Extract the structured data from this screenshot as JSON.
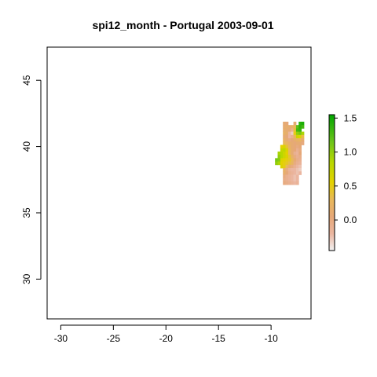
{
  "chart_data": {
    "type": "heatmap",
    "title": "spi12_month - Portugal 2003-09-01",
    "xlabel": "",
    "ylabel": "",
    "xlim": [
      -31.3,
      -6.2
    ],
    "ylim": [
      27.0,
      47.5
    ],
    "x_ticks": [
      -30,
      -25,
      -20,
      -15,
      -10
    ],
    "x_tick_labels": [
      "-30",
      "-25",
      "-20",
      "-15",
      "-10"
    ],
    "y_ticks": [
      30,
      35,
      40,
      45
    ],
    "y_tick_labels": [
      "30",
      "35",
      "40",
      "45"
    ],
    "grid": false,
    "legend": {
      "type": "colorbar",
      "placement": "right",
      "range": [
        -0.45,
        1.55
      ],
      "ticks": [
        0.0,
        0.5,
        1.0,
        1.5
      ],
      "tick_labels": [
        "0.0",
        "0.5",
        "1.0",
        "1.5"
      ],
      "colors": [
        [
          -0.45,
          "#f2f2f2"
        ],
        [
          -0.2,
          "#ebb6a0"
        ],
        [
          0.05,
          "#e6a878"
        ],
        [
          0.3,
          "#e8b85a"
        ],
        [
          0.55,
          "#e4d200"
        ],
        [
          0.85,
          "#b8d800"
        ],
        [
          1.15,
          "#6cc41a"
        ],
        [
          1.55,
          "#00a600"
        ]
      ]
    },
    "grid_cell_deg": 0.25,
    "cells": [
      [
        -8.75,
        41.75,
        0.1
      ],
      [
        -8.5,
        41.75,
        0.05
      ],
      [
        -7.75,
        41.75,
        0.1
      ],
      [
        -7.25,
        41.75,
        1.4
      ],
      [
        -7.0,
        41.75,
        1.45
      ],
      [
        -8.75,
        41.5,
        0.1
      ],
      [
        -8.5,
        41.5,
        0.15
      ],
      [
        -8.25,
        41.5,
        0.1
      ],
      [
        -8.0,
        41.5,
        0.2
      ],
      [
        -7.75,
        41.5,
        0.3
      ],
      [
        -7.5,
        41.5,
        1.2
      ],
      [
        -7.25,
        41.5,
        1.4
      ],
      [
        -7.0,
        41.5,
        1.3
      ],
      [
        -8.75,
        41.25,
        0.15
      ],
      [
        -8.5,
        41.25,
        0.1
      ],
      [
        -8.25,
        41.25,
        0.1
      ],
      [
        -8.0,
        41.25,
        -0.1
      ],
      [
        -7.75,
        41.25,
        0.4
      ],
      [
        -7.5,
        41.25,
        1.3
      ],
      [
        -7.25,
        41.25,
        1.35
      ],
      [
        -8.75,
        41.0,
        0.2
      ],
      [
        -8.5,
        41.0,
        0.15
      ],
      [
        -8.25,
        41.0,
        -0.2
      ],
      [
        -8.0,
        41.0,
        -0.3
      ],
      [
        -7.75,
        41.0,
        0.5
      ],
      [
        -7.5,
        41.0,
        1.0
      ],
      [
        -7.25,
        41.0,
        1.1
      ],
      [
        -7.0,
        41.0,
        0.9
      ],
      [
        -8.75,
        40.75,
        0.1
      ],
      [
        -8.5,
        40.75,
        0.05
      ],
      [
        -8.25,
        40.75,
        -0.2
      ],
      [
        -8.0,
        40.75,
        -0.1
      ],
      [
        -7.75,
        40.75,
        0.3
      ],
      [
        -7.5,
        40.75,
        0.7
      ],
      [
        -7.25,
        40.75,
        0.6
      ],
      [
        -7.0,
        40.75,
        0.35
      ],
      [
        -8.75,
        40.5,
        0.2
      ],
      [
        -8.5,
        40.5,
        0.1
      ],
      [
        -8.25,
        40.5,
        0.0
      ],
      [
        -8.0,
        40.5,
        0.05
      ],
      [
        -7.75,
        40.5,
        0.15
      ],
      [
        -7.5,
        40.5,
        0.2
      ],
      [
        -7.25,
        40.5,
        0.25
      ],
      [
        -7.0,
        40.5,
        0.1
      ],
      [
        -8.75,
        40.25,
        0.3
      ],
      [
        -8.5,
        40.25,
        0.25
      ],
      [
        -8.25,
        40.25,
        0.15
      ],
      [
        -8.0,
        40.25,
        0.1
      ],
      [
        -7.75,
        40.25,
        0.05
      ],
      [
        -7.5,
        40.25,
        0.1
      ],
      [
        -7.25,
        40.25,
        0.1
      ],
      [
        -7.0,
        40.25,
        0.0
      ],
      [
        -9.0,
        40.0,
        0.55
      ],
      [
        -8.75,
        40.0,
        0.6
      ],
      [
        -8.5,
        40.0,
        0.4
      ],
      [
        -8.25,
        40.0,
        0.2
      ],
      [
        -8.0,
        40.0,
        0.1
      ],
      [
        -7.75,
        40.0,
        0.05
      ],
      [
        -7.5,
        40.0,
        0.0
      ],
      [
        -7.25,
        40.0,
        0.05
      ],
      [
        -9.0,
        39.75,
        0.75
      ],
      [
        -8.75,
        39.75,
        0.8
      ],
      [
        -8.5,
        39.75,
        0.6
      ],
      [
        -8.25,
        39.75,
        0.3
      ],
      [
        -8.0,
        39.75,
        0.1
      ],
      [
        -7.75,
        39.75,
        0.05
      ],
      [
        -7.5,
        39.75,
        -0.1
      ],
      [
        -7.25,
        39.75,
        0.0
      ],
      [
        -9.25,
        39.5,
        0.9
      ],
      [
        -9.0,
        39.5,
        0.85
      ],
      [
        -8.75,
        39.5,
        0.7
      ],
      [
        -8.5,
        39.5,
        0.55
      ],
      [
        -8.25,
        39.5,
        0.3
      ],
      [
        -8.0,
        39.5,
        0.1
      ],
      [
        -7.75,
        39.5,
        -0.1
      ],
      [
        -7.5,
        39.5,
        -0.15
      ],
      [
        -7.25,
        39.5,
        0.05
      ],
      [
        -9.25,
        39.25,
        1.0
      ],
      [
        -9.0,
        39.25,
        0.85
      ],
      [
        -8.75,
        39.25,
        0.7
      ],
      [
        -8.5,
        39.25,
        0.6
      ],
      [
        -8.25,
        39.25,
        0.4
      ],
      [
        -8.0,
        39.25,
        0.2
      ],
      [
        -7.75,
        39.25,
        0.0
      ],
      [
        -7.5,
        39.25,
        -0.1
      ],
      [
        -7.25,
        39.25,
        -0.05
      ],
      [
        -9.5,
        39.0,
        1.1
      ],
      [
        -9.25,
        39.0,
        1.05
      ],
      [
        -9.0,
        39.0,
        0.6
      ],
      [
        -8.75,
        39.0,
        0.55
      ],
      [
        -8.5,
        39.0,
        0.5
      ],
      [
        -8.25,
        39.0,
        0.45
      ],
      [
        -8.0,
        39.0,
        0.3
      ],
      [
        -7.75,
        39.0,
        0.1
      ],
      [
        -7.5,
        39.0,
        -0.05
      ],
      [
        -7.25,
        39.0,
        -0.1
      ],
      [
        -9.5,
        38.75,
        1.0
      ],
      [
        -9.25,
        38.75,
        0.9
      ],
      [
        -9.0,
        38.75,
        0.55
      ],
      [
        -8.75,
        38.75,
        0.5
      ],
      [
        -8.5,
        38.75,
        0.45
      ],
      [
        -8.25,
        38.75,
        0.35
      ],
      [
        -8.0,
        38.75,
        0.25
      ],
      [
        -7.75,
        38.75,
        0.0
      ],
      [
        -7.5,
        38.75,
        -0.1
      ],
      [
        -7.25,
        38.75,
        -0.15
      ],
      [
        -9.0,
        38.5,
        0.6
      ],
      [
        -8.75,
        38.5,
        0.5
      ],
      [
        -8.5,
        38.5,
        0.3
      ],
      [
        -8.25,
        38.5,
        0.1
      ],
      [
        -8.0,
        38.5,
        0.0
      ],
      [
        -7.75,
        38.5,
        -0.1
      ],
      [
        -7.5,
        38.5,
        -0.2
      ],
      [
        -7.25,
        38.5,
        -0.25
      ],
      [
        -8.75,
        38.25,
        0.2
      ],
      [
        -8.5,
        38.25,
        0.0
      ],
      [
        -8.25,
        38.25,
        -0.15
      ],
      [
        -8.0,
        38.25,
        -0.2
      ],
      [
        -7.75,
        38.25,
        -0.2
      ],
      [
        -7.5,
        38.25,
        -0.25
      ],
      [
        -7.25,
        38.25,
        -0.3
      ],
      [
        -8.75,
        38.0,
        0.15
      ],
      [
        -8.5,
        38.0,
        0.05
      ],
      [
        -8.25,
        38.0,
        -0.1
      ],
      [
        -8.0,
        38.0,
        -0.15
      ],
      [
        -7.75,
        38.0,
        -0.2
      ],
      [
        -7.5,
        38.0,
        -0.25
      ],
      [
        -7.25,
        38.0,
        -0.2
      ],
      [
        -8.75,
        37.75,
        0.0
      ],
      [
        -8.5,
        37.75,
        -0.1
      ],
      [
        -8.25,
        37.75,
        -0.15
      ],
      [
        -8.0,
        37.75,
        -0.2
      ],
      [
        -7.75,
        37.75,
        -0.25
      ],
      [
        -7.5,
        37.75,
        -0.2
      ],
      [
        -8.75,
        37.5,
        -0.05
      ],
      [
        -8.5,
        37.5,
        -0.1
      ],
      [
        -8.25,
        37.5,
        -0.15
      ],
      [
        -8.0,
        37.5,
        -0.2
      ],
      [
        -7.75,
        37.5,
        -0.25
      ],
      [
        -7.5,
        37.5,
        -0.2
      ],
      [
        -8.75,
        37.25,
        0.0
      ],
      [
        -8.5,
        37.25,
        -0.05
      ],
      [
        -8.25,
        37.25,
        -0.1
      ],
      [
        -8.0,
        37.25,
        -0.15
      ],
      [
        -7.75,
        37.25,
        -0.2
      ],
      [
        -7.5,
        37.25,
        -0.15
      ]
    ]
  }
}
